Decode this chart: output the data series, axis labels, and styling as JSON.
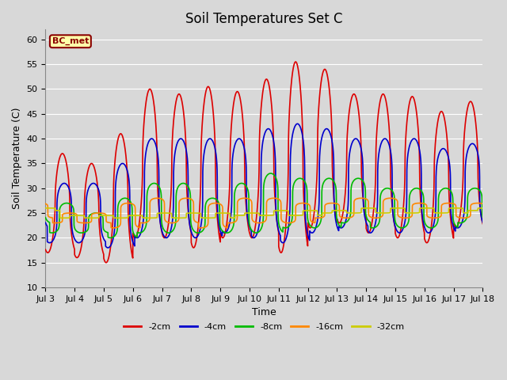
{
  "title": "Soil Temperatures Set C",
  "xlabel": "Time",
  "ylabel": "Soil Temperature (C)",
  "ylim": [
    10,
    62
  ],
  "yticks": [
    10,
    15,
    20,
    25,
    30,
    35,
    40,
    45,
    50,
    55,
    60
  ],
  "xlim_days": [
    3,
    18
  ],
  "xtick_days": [
    3,
    4,
    5,
    6,
    7,
    8,
    9,
    10,
    11,
    12,
    13,
    14,
    15,
    16,
    17,
    18
  ],
  "xtick_labels": [
    "Jul 3",
    "Jul 4",
    "Jul 5",
    "Jul 6",
    "Jul 7",
    "Jul 8",
    "Jul 9",
    "Jul 10",
    "Jul 11",
    "Jul 12",
    "Jul 13",
    "Jul 14",
    "Jul 15",
    "Jul 16",
    "Jul 17",
    "Jul 18"
  ],
  "series": [
    {
      "label": "-2cm",
      "color": "#dd0000"
    },
    {
      "label": "-4cm",
      "color": "#0000cc"
    },
    {
      "label": "-8cm",
      "color": "#00bb00"
    },
    {
      "label": "-16cm",
      "color": "#ff8800"
    },
    {
      "label": "-32cm",
      "color": "#cccc00"
    }
  ],
  "legend_label": "BC_met",
  "background_color": "#d8d8d8",
  "plot_bg_color": "#d8d8d8",
  "grid_color": "#ffffff",
  "title_fontsize": 12,
  "axis_fontsize": 9,
  "tick_fontsize": 8,
  "linewidth": 1.2
}
